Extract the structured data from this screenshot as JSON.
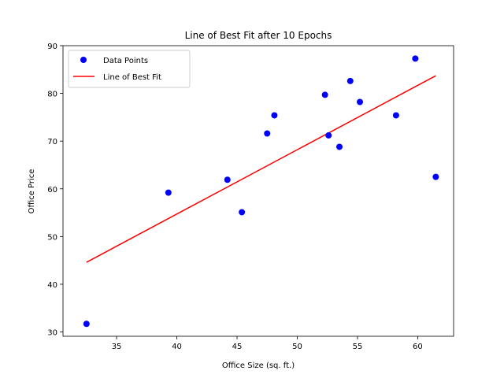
{
  "chart_data": {
    "type": "scatter",
    "title": "Line of Best Fit after 10 Epochs",
    "xlabel": "Office Size (sq. ft.)",
    "ylabel": "Office Price",
    "xlim": [
      30.55,
      62.98
    ],
    "ylim": [
      29.1,
      90.0
    ],
    "xticks": [
      35,
      40,
      45,
      50,
      55,
      60
    ],
    "yticks": [
      30,
      40,
      50,
      60,
      70,
      80,
      90
    ],
    "xtick_labels": [
      "35",
      "40",
      "45",
      "50",
      "55",
      "60"
    ],
    "ytick_labels": [
      "30",
      "40",
      "50",
      "60",
      "70",
      "80",
      "90"
    ],
    "grid": false,
    "legend_position": "top-left",
    "series": [
      {
        "name": "Data Points",
        "kind": "scatter",
        "color": "#0000ff",
        "points": [
          [
            32.5,
            31.7
          ],
          [
            39.3,
            59.2
          ],
          [
            44.2,
            61.9
          ],
          [
            45.4,
            55.1
          ],
          [
            47.5,
            71.6
          ],
          [
            48.1,
            75.4
          ],
          [
            52.3,
            79.7
          ],
          [
            52.6,
            71.2
          ],
          [
            53.5,
            68.8
          ],
          [
            54.4,
            82.6
          ],
          [
            55.2,
            78.2
          ],
          [
            58.2,
            75.4
          ],
          [
            59.8,
            87.3
          ],
          [
            61.5,
            62.5
          ]
        ]
      },
      {
        "name": "Line of Best Fit",
        "kind": "line",
        "color": "#ff0000",
        "points": [
          [
            32.5,
            44.6
          ],
          [
            61.5,
            83.7
          ]
        ]
      }
    ]
  }
}
